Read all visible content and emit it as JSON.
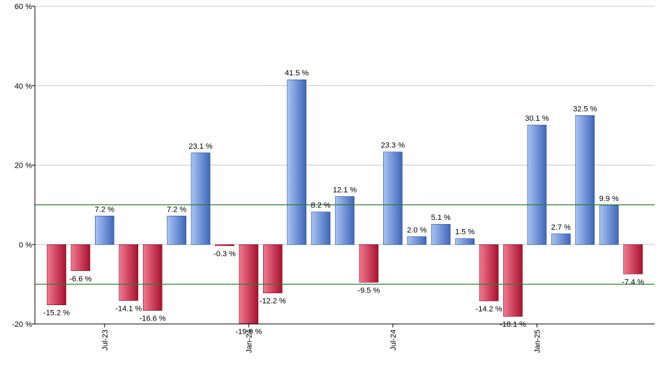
{
  "chart_data": {
    "type": "bar",
    "title": "",
    "xlabel": "",
    "ylabel": "",
    "ylim": [
      -20,
      60
    ],
    "y_ticks": [
      {
        "value": -20,
        "label": "-20 %"
      },
      {
        "value": 0,
        "label": "0 %"
      },
      {
        "value": 20,
        "label": "20 %"
      },
      {
        "value": 40,
        "label": "40 %"
      },
      {
        "value": 60,
        "label": "60 %"
      }
    ],
    "reference_lines": [
      10,
      -10
    ],
    "grid": true,
    "x_tick_labels": [
      {
        "index": 2,
        "label": "Jul-23"
      },
      {
        "index": 8,
        "label": "Jan-24"
      },
      {
        "index": 14,
        "label": "Jul-24"
      },
      {
        "index": 20,
        "label": "Jan-25"
      }
    ],
    "values": [
      -15.2,
      -6.6,
      7.2,
      -14.1,
      -16.6,
      7.2,
      23.1,
      -0.3,
      -19.9,
      -12.2,
      41.5,
      8.2,
      12.1,
      -9.5,
      23.3,
      2.0,
      5.1,
      1.5,
      -14.2,
      -18.1,
      30.1,
      2.7,
      32.5,
      9.9,
      -7.4
    ],
    "data_labels": [
      "-15.2 %",
      "-6.6 %",
      "7.2 %",
      "-14.1 %",
      "-16.6 %",
      "7.2 %",
      "23.1 %",
      "-0.3 %",
      "-19.9 %",
      "-12.2 %",
      "41.5 %",
      "8.2 %",
      "12.1 %",
      "-9.5 %",
      "23.3 %",
      "2.0 %",
      "5.1 %",
      "1.5 %",
      "-14.2 %",
      "-18.1 %",
      "30.1 %",
      "2.7 %",
      "32.5 %",
      "9.9 %",
      "-7.4 %"
    ],
    "colors": {
      "positive_light": "#a9c4f5",
      "positive_dark": "#3f66b8",
      "negative_light": "#f27a92",
      "negative_dark": "#a8102e",
      "grid": "#c8c8c8",
      "reference": "#2e7d2e",
      "axis": "#000000"
    }
  }
}
